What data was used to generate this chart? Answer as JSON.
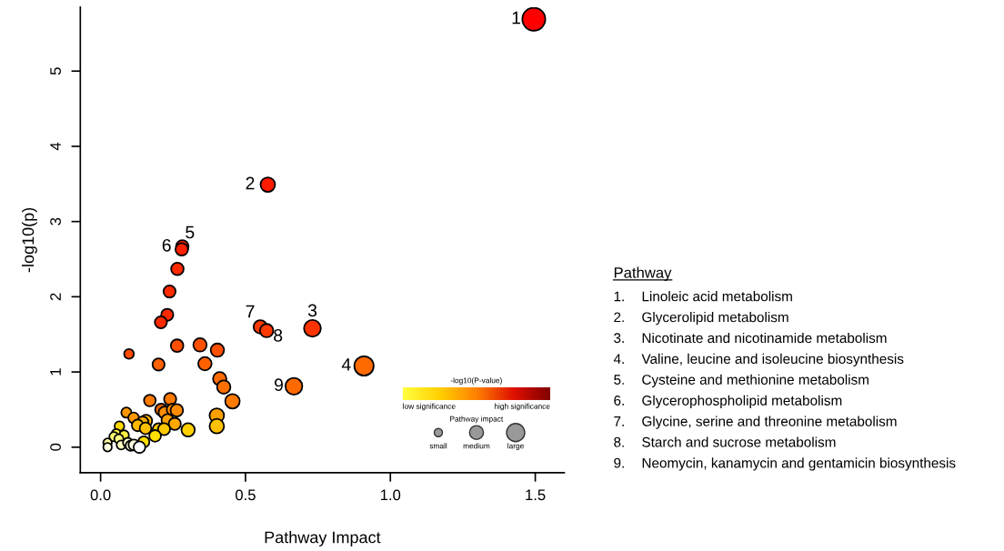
{
  "chart_data": {
    "type": "bubble",
    "xlabel": "Pathway Impact",
    "ylabel": "-log10(p)",
    "xlim": [
      -0.07,
      1.6
    ],
    "ylim": [
      -0.34,
      5.85
    ],
    "xticks": [
      {
        "value": 0,
        "label": "0.0"
      },
      {
        "value": 0.5,
        "label": "0.5"
      },
      {
        "value": 1,
        "label": "1.0"
      },
      {
        "value": 1.5,
        "label": "1.5"
      }
    ],
    "yticks": [
      0,
      1,
      2,
      3,
      4,
      5
    ],
    "grid": false,
    "legend": false,
    "x": [
      1.495,
      0.577,
      0.731,
      0.909,
      0.282,
      0.28,
      0.551,
      0.573,
      0.667,
      0.265,
      0.238,
      0.23,
      0.208,
      0.098,
      0.264,
      0.343,
      0.403,
      0.2,
      0.36,
      0.411,
      0.425,
      0.455,
      0.17,
      0.24,
      0.209,
      0.221,
      0.249,
      0.263,
      0.089,
      0.114,
      0.231,
      0.256,
      0.401,
      0.401,
      0.157,
      0.145,
      0.128,
      0.155,
      0.201,
      0.219,
      0.302,
      0.188,
      0.065,
      0.054,
      0.081,
      0.149,
      0.046,
      0.063,
      0.024,
      0.024,
      0.071,
      0.094,
      0.104,
      0.115,
      0.134
    ],
    "values": [
      5.69,
      3.49,
      1.58,
      1.08,
      2.67,
      2.63,
      1.6,
      1.55,
      0.81,
      2.37,
      2.07,
      1.76,
      1.66,
      1.24,
      1.35,
      1.36,
      1.29,
      1.1,
      1.11,
      0.91,
      0.8,
      0.61,
      0.62,
      0.64,
      0.5,
      0.46,
      0.5,
      0.49,
      0.46,
      0.39,
      0.36,
      0.31,
      0.42,
      0.28,
      0.35,
      0.33,
      0.29,
      0.25,
      0.24,
      0.24,
      0.23,
      0.15,
      0.28,
      0.18,
      0.16,
      0.07,
      0.14,
      0.11,
      0.06,
      0.0,
      0.03,
      0.06,
      0.02,
      0.03,
      0.0
    ],
    "sizes": [
      1,
      0.4,
      0.54,
      0.71,
      0.3,
      0.3,
      0.34,
      0.34,
      0.54,
      0.3,
      0.28,
      0.28,
      0.28,
      0.18,
      0.3,
      0.34,
      0.34,
      0.28,
      0.34,
      0.34,
      0.34,
      0.4,
      0.26,
      0.28,
      0.28,
      0.28,
      0.28,
      0.3,
      0.2,
      0.22,
      0.28,
      0.28,
      0.4,
      0.4,
      0.28,
      0.26,
      0.26,
      0.26,
      0.28,
      0.28,
      0.34,
      0.26,
      0.18,
      0.16,
      0.18,
      0.24,
      0.16,
      0.16,
      0.14,
      0.14,
      0.16,
      0.18,
      0.2,
      0.22,
      0.26
    ],
    "colors": [
      "#ff0000",
      "#ff1a00",
      "#ff3300",
      "#ff6a00",
      "#ff2000",
      "#ff2000",
      "#ff3a00",
      "#ff3a00",
      "#ff6a00",
      "#ff2a00",
      "#ff2a00",
      "#ff2a00",
      "#ff2a00",
      "#ff4a00",
      "#ff5000",
      "#ff5000",
      "#ff5000",
      "#ff6000",
      "#ff6000",
      "#ff6a00",
      "#ff7000",
      "#ff7a00",
      "#ff7a00",
      "#ff7a00",
      "#e06000",
      "#ff8c00",
      "#ff8c00",
      "#ff8c00",
      "#ff9800",
      "#ff9800",
      "#ffa000",
      "#ffa800",
      "#ffa000",
      "#ffc000",
      "#ffb000",
      "#ffb000",
      "#ffb800",
      "#ffc000",
      "#ffc800",
      "#ffc800",
      "#ffd000",
      "#ffe000",
      "#ffd800",
      "#ffee40",
      "#ffee40",
      "#ffe000",
      "#ffff70",
      "#ffff80",
      "#ffffa0",
      "#ffffe0",
      "#ffffc0",
      "#ffffd0",
      "#ffffe0",
      "#ffffe0",
      "#ffffff"
    ],
    "annotations": [
      {
        "text": "1",
        "x": 1.495,
        "y": 5.69
      },
      {
        "text": "2",
        "x": 0.577,
        "y": 3.49
      },
      {
        "text": "3",
        "x": 0.731,
        "y": 1.58
      },
      {
        "text": "4",
        "x": 0.909,
        "y": 1.08
      },
      {
        "text": "5",
        "x": 0.282,
        "y": 2.67
      },
      {
        "text": "6",
        "x": 0.28,
        "y": 2.63
      },
      {
        "text": "7",
        "x": 0.551,
        "y": 1.6
      },
      {
        "text": "8",
        "x": 0.573,
        "y": 1.55
      },
      {
        "text": "9",
        "x": 0.667,
        "y": 0.81
      },
      "Pathway",
      "1.\tLinoleic acid metabolism",
      "2.\tGlycerolipid metabolism",
      "3.\tNicotinate and nicotinamide metabolism",
      "4.\tValine, leucine and isoleucine biosynthesis",
      "5.\tCysteine and methionine metabolism",
      "6.\tGlycerophospholipid metabolism",
      "7.\tGlycine, serine and threonine metabolism",
      "8.\tStarch and sucrose metabolism",
      "9.\tNeomycin, kanamycin and gentamicin biosynthesis",
      "-log10(P-value)",
      "low significance",
      "high significance",
      "Pathway impact",
      "small",
      "medium",
      "large"
    ]
  }
}
